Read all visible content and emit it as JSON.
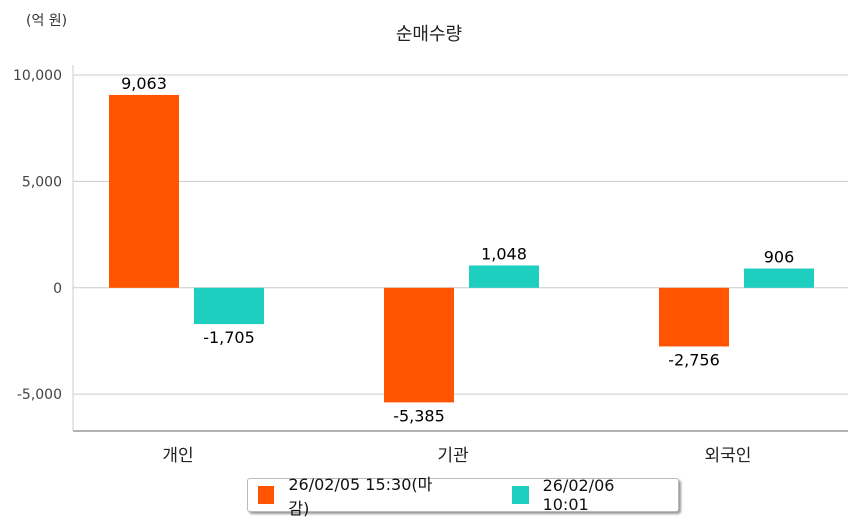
{
  "chart_data": {
    "type": "bar",
    "title": "순매수량",
    "unit_label": "(억 원)",
    "categories": [
      "개인",
      "기관",
      "외국인"
    ],
    "series": [
      {
        "name": "26/02/05 15:30(마감)",
        "color": "#FF5500",
        "values": [
          9063,
          -5385,
          -2756
        ],
        "labels": [
          "9,063",
          "-5,385",
          "-2,756"
        ]
      },
      {
        "name": "26/02/06 10:01",
        "color": "#1ECFBF",
        "values": [
          -1705,
          1048,
          906
        ],
        "labels": [
          "-1,705",
          "1,048",
          "906"
        ]
      }
    ],
    "yticks": [
      10000,
      5000,
      0,
      -5000
    ],
    "ytick_labels": [
      "10,000",
      "5,000",
      "0",
      "-5,000"
    ],
    "ylim": [
      -6730,
      10000
    ],
    "grid": true,
    "legend_position": "bottom"
  }
}
